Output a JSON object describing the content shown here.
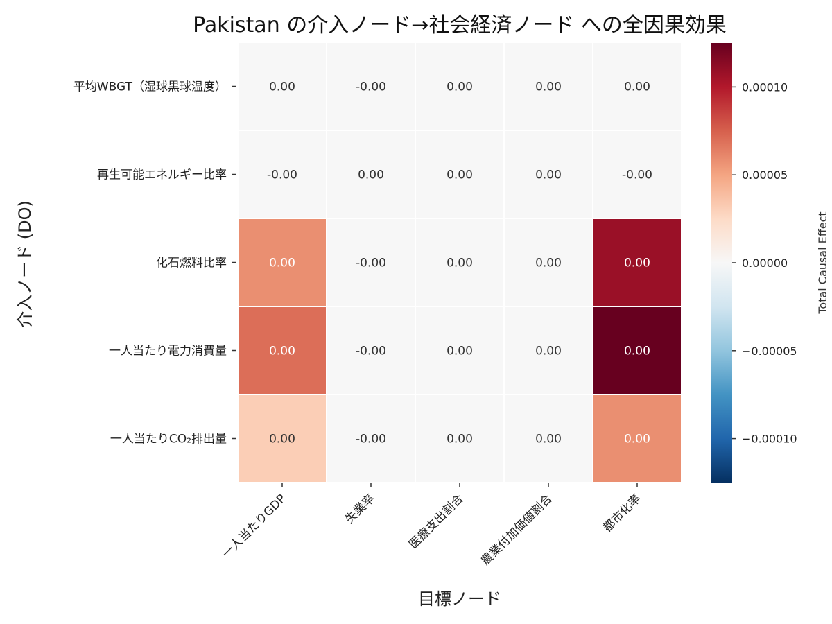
{
  "chart_data": {
    "type": "heatmap",
    "title": "Pakistan の介入ノード→社会経済ノード への全因果効果",
    "xlabel": "目標ノード",
    "ylabel": "介入ノード (DO)",
    "x_categories": [
      "一人当たりGDP",
      "失業率",
      "医療支出割合",
      "農業付加価値割合",
      "都市化率"
    ],
    "y_categories": [
      "平均WBGT（湿球黒球温度）",
      "再生可能エネルギー比率",
      "化石燃料比率",
      "一人当たり電力消費量",
      "一人当たりCO₂排出量"
    ],
    "values": [
      [
        0.0,
        0.0,
        0.0,
        0.0,
        0.0
      ],
      [
        0.0,
        0.0,
        0.0,
        0.0,
        0.0
      ],
      [
        5.8e-05,
        0.0,
        0.0,
        0.0,
        0.000108
      ],
      [
        7e-05,
        0.0,
        0.0,
        0.0,
        0.000125
      ],
      [
        3.1e-05,
        0.0,
        0.0,
        0.0,
        5.8e-05
      ]
    ],
    "annotations": [
      [
        "0.00",
        "-0.00",
        "0.00",
        "0.00",
        "0.00"
      ],
      [
        "-0.00",
        "0.00",
        "0.00",
        "0.00",
        "-0.00"
      ],
      [
        "0.00",
        "-0.00",
        "0.00",
        "0.00",
        "0.00"
      ],
      [
        "0.00",
        "-0.00",
        "0.00",
        "0.00",
        "0.00"
      ],
      [
        "0.00",
        "-0.00",
        "0.00",
        "0.00",
        "0.00"
      ]
    ],
    "colormap": "RdBu_r",
    "vmin": -0.000125,
    "vmax": 0.000125,
    "colorbar": {
      "label": "Total Causal Effect",
      "ticks": [
        0.0001,
        5e-05,
        0.0,
        -5e-05,
        -0.0001
      ],
      "tick_labels": [
        "0.00010",
        "0.00005",
        "0.00000",
        "−0.00005",
        "−0.00010"
      ]
    }
  }
}
